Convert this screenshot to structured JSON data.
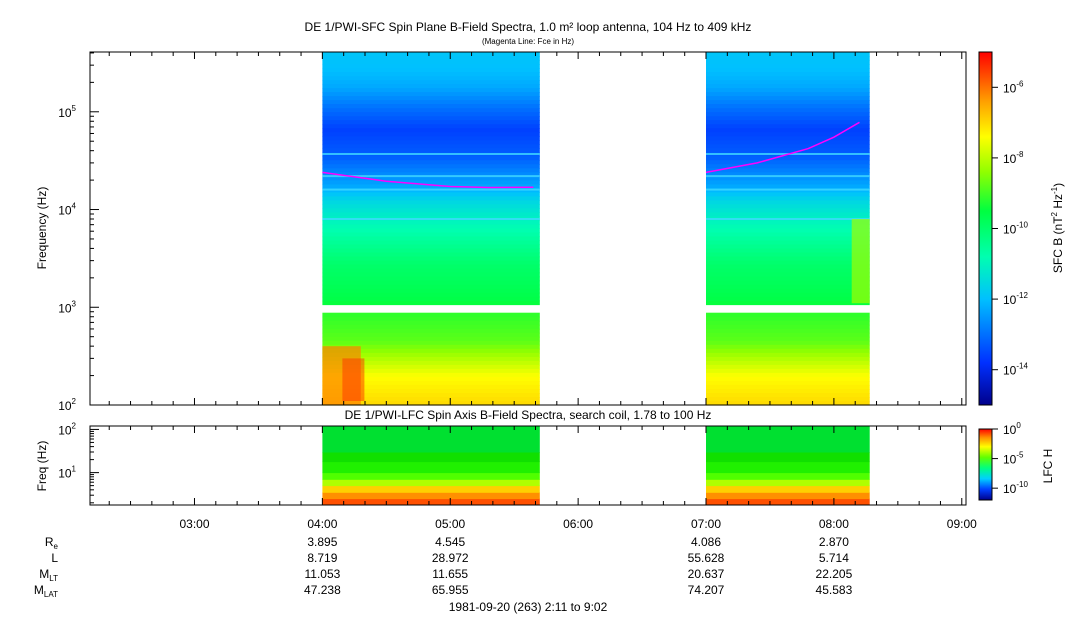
{
  "chart_data": [
    {
      "type": "heatmap",
      "panel": "top",
      "title": "DE 1/PWI-SFC  Spin Plane B-Field Spectra, 1.0 m² loop antenna, 104 Hz to 409 kHz",
      "subtitle": "(Magenta Line: Fce in Hz)",
      "ylabel": "Frequency (Hz)",
      "y_scale": "log",
      "ylim": [
        100,
        409000
      ],
      "y_ticks": [
        {
          "value": 100,
          "base": "10",
          "exp": "2"
        },
        {
          "value": 1000,
          "base": "10",
          "exp": "3"
        },
        {
          "value": 10000,
          "base": "10",
          "exp": "4"
        },
        {
          "value": 100000,
          "base": "10",
          "exp": "5"
        }
      ],
      "xlim_hours": [
        2.183,
        9.033
      ],
      "data_intervals_hours": [
        [
          4.0,
          5.7
        ],
        [
          7.0,
          8.28
        ]
      ],
      "channel_gap_hz": [
        900,
        1050
      ],
      "fce_line": [
        {
          "segment": 1,
          "t": [
            4.0,
            4.5,
            5.0,
            5.3,
            5.65
          ],
          "f": [
            24000,
            19500,
            17200,
            16800,
            16900
          ]
        },
        {
          "segment": 2,
          "t": [
            7.0,
            7.4,
            7.8,
            8.0,
            8.2
          ],
          "f": [
            24000,
            30000,
            42000,
            55000,
            78000
          ]
        }
      ],
      "colorbar": {
        "label_main": "SFC B (nT",
        "label_sup1": "2",
        "label_mid": " Hz",
        "label_sup2": "-1",
        "label_end": ")",
        "scale": "log",
        "range_exp": [
          -15,
          -5
        ],
        "ticks": [
          {
            "base": "10",
            "exp": "-6",
            "e": -6
          },
          {
            "base": "10",
            "exp": "-8",
            "e": -8
          },
          {
            "base": "10",
            "exp": "-10",
            "e": -10
          },
          {
            "base": "10",
            "exp": "-12",
            "e": -12
          },
          {
            "base": "10",
            "exp": "-14",
            "e": -14
          }
        ]
      }
    },
    {
      "type": "heatmap",
      "panel": "bottom",
      "title": "DE 1/PWI-LFC  Spin Axis B-Field Spectra, search coil, 1.78 to 100 Hz",
      "ylabel": "Freq (Hz)",
      "y_scale": "log",
      "ylim": [
        1.78,
        120
      ],
      "y_ticks": [
        {
          "value": 10,
          "base": "10",
          "exp": "1"
        },
        {
          "value": 100,
          "base": "10",
          "exp": "2"
        }
      ],
      "data_intervals_hours": [
        [
          4.0,
          5.7
        ],
        [
          7.0,
          8.28
        ]
      ],
      "colorbar": {
        "label": "LFC H",
        "scale": "log",
        "range_exp": [
          -12,
          0
        ],
        "ticks": [
          {
            "base": "10",
            "exp": "0",
            "e": 0
          },
          {
            "base": "10",
            "exp": "-5",
            "e": -5
          },
          {
            "base": "10",
            "exp": "-10",
            "e": -10
          }
        ]
      }
    }
  ],
  "x_axis": {
    "tick_labels": [
      {
        "t": 3,
        "label": "03:00"
      },
      {
        "t": 4,
        "label": "04:00"
      },
      {
        "t": 5,
        "label": "05:00"
      },
      {
        "t": 6,
        "label": "06:00"
      },
      {
        "t": 7,
        "label": "07:00"
      },
      {
        "t": 8,
        "label": "08:00"
      },
      {
        "t": 9,
        "label": "09:00"
      }
    ],
    "ephemeris": [
      {
        "name": "R",
        "sub": "e",
        "values": [
          {
            "t": 4,
            "v": "3.895"
          },
          {
            "t": 5,
            "v": "4.545"
          },
          {
            "t": 7,
            "v": "4.086"
          },
          {
            "t": 8,
            "v": "2.870"
          }
        ]
      },
      {
        "name": "L",
        "sub": "",
        "values": [
          {
            "t": 4,
            "v": "8.719"
          },
          {
            "t": 5,
            "v": "28.972"
          },
          {
            "t": 7,
            "v": "55.628"
          },
          {
            "t": 8,
            "v": "5.714"
          }
        ]
      },
      {
        "name": "M",
        "sub": "LT",
        "values": [
          {
            "t": 4,
            "v": "11.053"
          },
          {
            "t": 5,
            "v": "11.655"
          },
          {
            "t": 7,
            "v": "20.637"
          },
          {
            "t": 8,
            "v": "22.205"
          }
        ]
      },
      {
        "name": "M",
        "sub": "LAT",
        "values": [
          {
            "t": 4,
            "v": "47.238"
          },
          {
            "t": 5,
            "v": "65.955"
          },
          {
            "t": 7,
            "v": "74.207"
          },
          {
            "t": 8,
            "v": "45.583"
          }
        ]
      }
    ],
    "footer": "1981-09-20 (263) 2:11 to 9:02"
  }
}
